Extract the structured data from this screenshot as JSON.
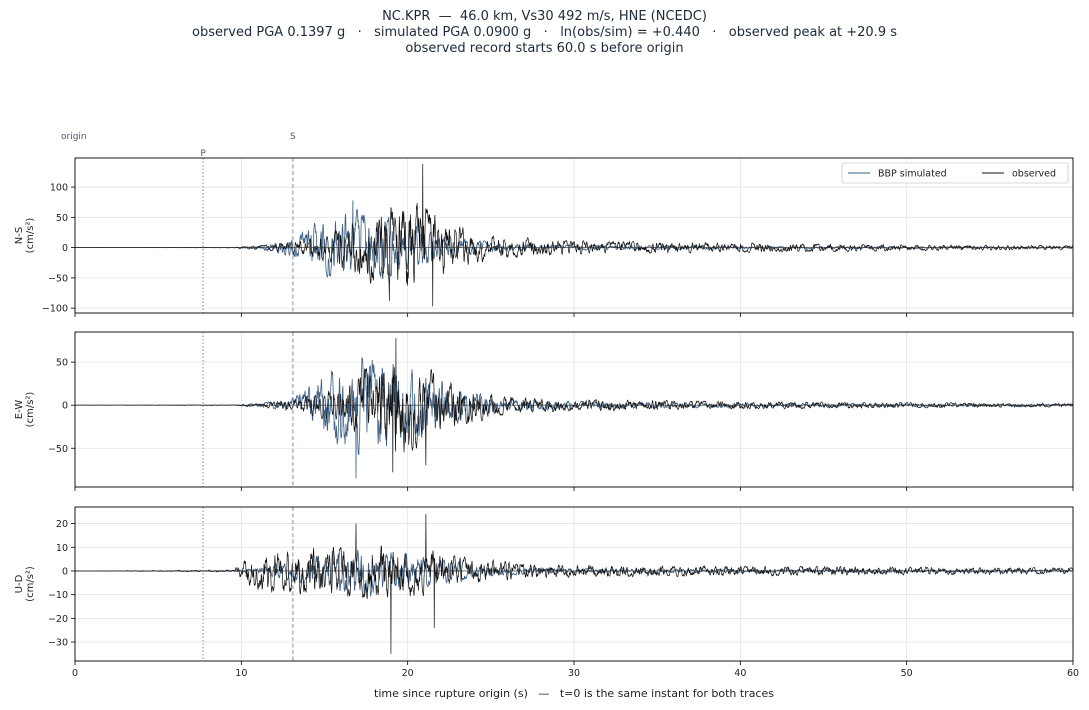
{
  "chart_data": {
    "type": "line",
    "title_lines": [
      "NC.KPR  —  46.0 km, Vs30 492 m/s, HNE (NCEDC)",
      "observed PGA 0.1397 g   ·   simulated PGA 0.0900 g   ·   ln(obs/sim) = +0.440   ·   observed peak at +20.9 s",
      "observed record starts 60.0 s before origin"
    ],
    "xlabel": "time since rupture origin (s)   —   t=0 is the same instant for both traces",
    "xlim": [
      0,
      60
    ],
    "x_ticks": [
      0,
      10,
      20,
      30,
      40,
      50,
      60
    ],
    "grid": true,
    "legend": {
      "position": "top-right",
      "entries": [
        {
          "name": "BBP simulated",
          "color": "#3b5f86"
        },
        {
          "name": "observed",
          "color": "#111111"
        }
      ]
    },
    "phase_markers": [
      {
        "label": "origin",
        "t": 0,
        "style": "none"
      },
      {
        "label": "P",
        "t": 7.7,
        "style": "dotted",
        "color": "#888888"
      },
      {
        "label": "S",
        "t": 13.1,
        "style": "dashed",
        "color": "#7f8fc0"
      }
    ],
    "panels": [
      {
        "ylabel": "N-S\n(cm/s²)",
        "ylim": [
          -108,
          148
        ],
        "y_ticks": [
          -100,
          -50,
          0,
          50,
          100
        ],
        "series": [
          {
            "name": "BBP simulated",
            "color": "#3b5f86",
            "envelope": [
              [
                0,
                0
              ],
              [
                9.5,
                0.3
              ],
              [
                11,
                3
              ],
              [
                13,
                18
              ],
              [
                14.5,
                48
              ],
              [
                16,
                68
              ],
              [
                17,
                72
              ],
              [
                18,
                62
              ],
              [
                19,
                55
              ],
              [
                20,
                45
              ],
              [
                21,
                38
              ],
              [
                22,
                28
              ],
              [
                23,
                20
              ],
              [
                24,
                14
              ],
              [
                26,
                8
              ],
              [
                30,
                5
              ],
              [
                40,
                3
              ],
              [
                50,
                2
              ],
              [
                60,
                1.5
              ]
            ]
          },
          {
            "name": "observed",
            "color": "#111111",
            "envelope": [
              [
                0,
                0
              ],
              [
                9.5,
                0.5
              ],
              [
                10.5,
                3
              ],
              [
                12,
                7
              ],
              [
                13,
                12
              ],
              [
                14.5,
                22
              ],
              [
                16,
                40
              ],
              [
                17.5,
                60
              ],
              [
                18.5,
                80
              ],
              [
                19.5,
                90
              ],
              [
                20.5,
                95
              ],
              [
                21.5,
                70
              ],
              [
                22.5,
                50
              ],
              [
                24,
                30
              ],
              [
                26,
                20
              ],
              [
                30,
                13
              ],
              [
                40,
                9
              ],
              [
                50,
                6
              ],
              [
                60,
                4
              ]
            ]
          }
        ],
        "peaks": [
          {
            "name": "observed",
            "t": 20.9,
            "value": 138
          },
          {
            "name": "observed",
            "t": 21.5,
            "value": -97
          },
          {
            "name": "observed",
            "t": 18.9,
            "value": -88
          },
          {
            "name": "BBP simulated",
            "t": 16.7,
            "value": 78
          }
        ]
      },
      {
        "ylabel": "E-W\n(cm/s²)",
        "ylim": [
          -95,
          85
        ],
        "y_ticks": [
          -50,
          0,
          50
        ],
        "series": [
          {
            "name": "BBP simulated",
            "color": "#3b5f86",
            "envelope": [
              [
                0,
                0
              ],
              [
                9.5,
                0.3
              ],
              [
                11,
                2
              ],
              [
                13,
                10
              ],
              [
                14.5,
                35
              ],
              [
                15.5,
                52
              ],
              [
                16.5,
                65
              ],
              [
                17.5,
                70
              ],
              [
                18.5,
                62
              ],
              [
                20,
                50
              ],
              [
                21,
                45
              ],
              [
                22,
                35
              ],
              [
                23,
                25
              ],
              [
                24,
                16
              ],
              [
                26,
                9
              ],
              [
                30,
                5
              ],
              [
                40,
                3
              ],
              [
                50,
                2
              ],
              [
                60,
                1.5
              ]
            ]
          },
          {
            "name": "observed",
            "color": "#111111",
            "envelope": [
              [
                0,
                0
              ],
              [
                9.5,
                0.5
              ],
              [
                10.5,
                2
              ],
              [
                12,
                5
              ],
              [
                13,
                8
              ],
              [
                14.5,
                15
              ],
              [
                16,
                25
              ],
              [
                17.5,
                45
              ],
              [
                18.5,
                60
              ],
              [
                19.5,
                70
              ],
              [
                20.5,
                60
              ],
              [
                21.5,
                45
              ],
              [
                22.5,
                35
              ],
              [
                24,
                22
              ],
              [
                26,
                12
              ],
              [
                30,
                8
              ],
              [
                40,
                5
              ],
              [
                50,
                3.5
              ],
              [
                60,
                2.5
              ]
            ]
          }
        ],
        "peaks": [
          {
            "name": "observed",
            "t": 19.3,
            "value": 78
          },
          {
            "name": "BBP simulated",
            "t": 16.9,
            "value": -85
          },
          {
            "name": "observed",
            "t": 19.1,
            "value": -78
          },
          {
            "name": "observed",
            "t": 21.1,
            "value": -70
          }
        ]
      },
      {
        "ylabel": "U-D\n(cm/s²)",
        "ylim": [
          -38,
          27
        ],
        "y_ticks": [
          -30,
          -20,
          -10,
          0,
          10,
          20
        ],
        "series": [
          {
            "name": "BBP simulated",
            "color": "#3b5f86",
            "envelope": [
              [
                0,
                0
              ],
              [
                9.5,
                0.3
              ],
              [
                11,
                1.5
              ],
              [
                13,
                5
              ],
              [
                15,
                9
              ],
              [
                16.5,
                12
              ],
              [
                17.5,
                13
              ],
              [
                18.5,
                11
              ],
              [
                20,
                9
              ],
              [
                21,
                8
              ],
              [
                22,
                6
              ],
              [
                23,
                5
              ],
              [
                24,
                3
              ],
              [
                26,
                2
              ],
              [
                30,
                1.2
              ],
              [
                40,
                0.8
              ],
              [
                60,
                0.5
              ]
            ]
          },
          {
            "name": "observed",
            "color": "#111111",
            "envelope": [
              [
                0,
                0
              ],
              [
                9.5,
                0.5
              ],
              [
                10.2,
                6
              ],
              [
                11,
                10
              ],
              [
                12.5,
                11
              ],
              [
                14,
                12
              ],
              [
                16,
                12
              ],
              [
                17,
                13
              ],
              [
                18,
                14
              ],
              [
                19,
                14
              ],
              [
                20,
                13
              ],
              [
                21,
                12
              ],
              [
                22,
                9
              ],
              [
                24,
                6
              ],
              [
                27,
                4
              ],
              [
                30,
                3
              ],
              [
                40,
                2.5
              ],
              [
                50,
                2
              ],
              [
                60,
                1.5
              ]
            ]
          }
        ],
        "peaks": [
          {
            "name": "observed",
            "t": 21.1,
            "value": 24
          },
          {
            "name": "observed",
            "t": 19.0,
            "value": -35
          },
          {
            "name": "observed",
            "t": 21.6,
            "value": -24
          },
          {
            "name": "observed",
            "t": 16.9,
            "value": 20
          }
        ]
      }
    ]
  }
}
